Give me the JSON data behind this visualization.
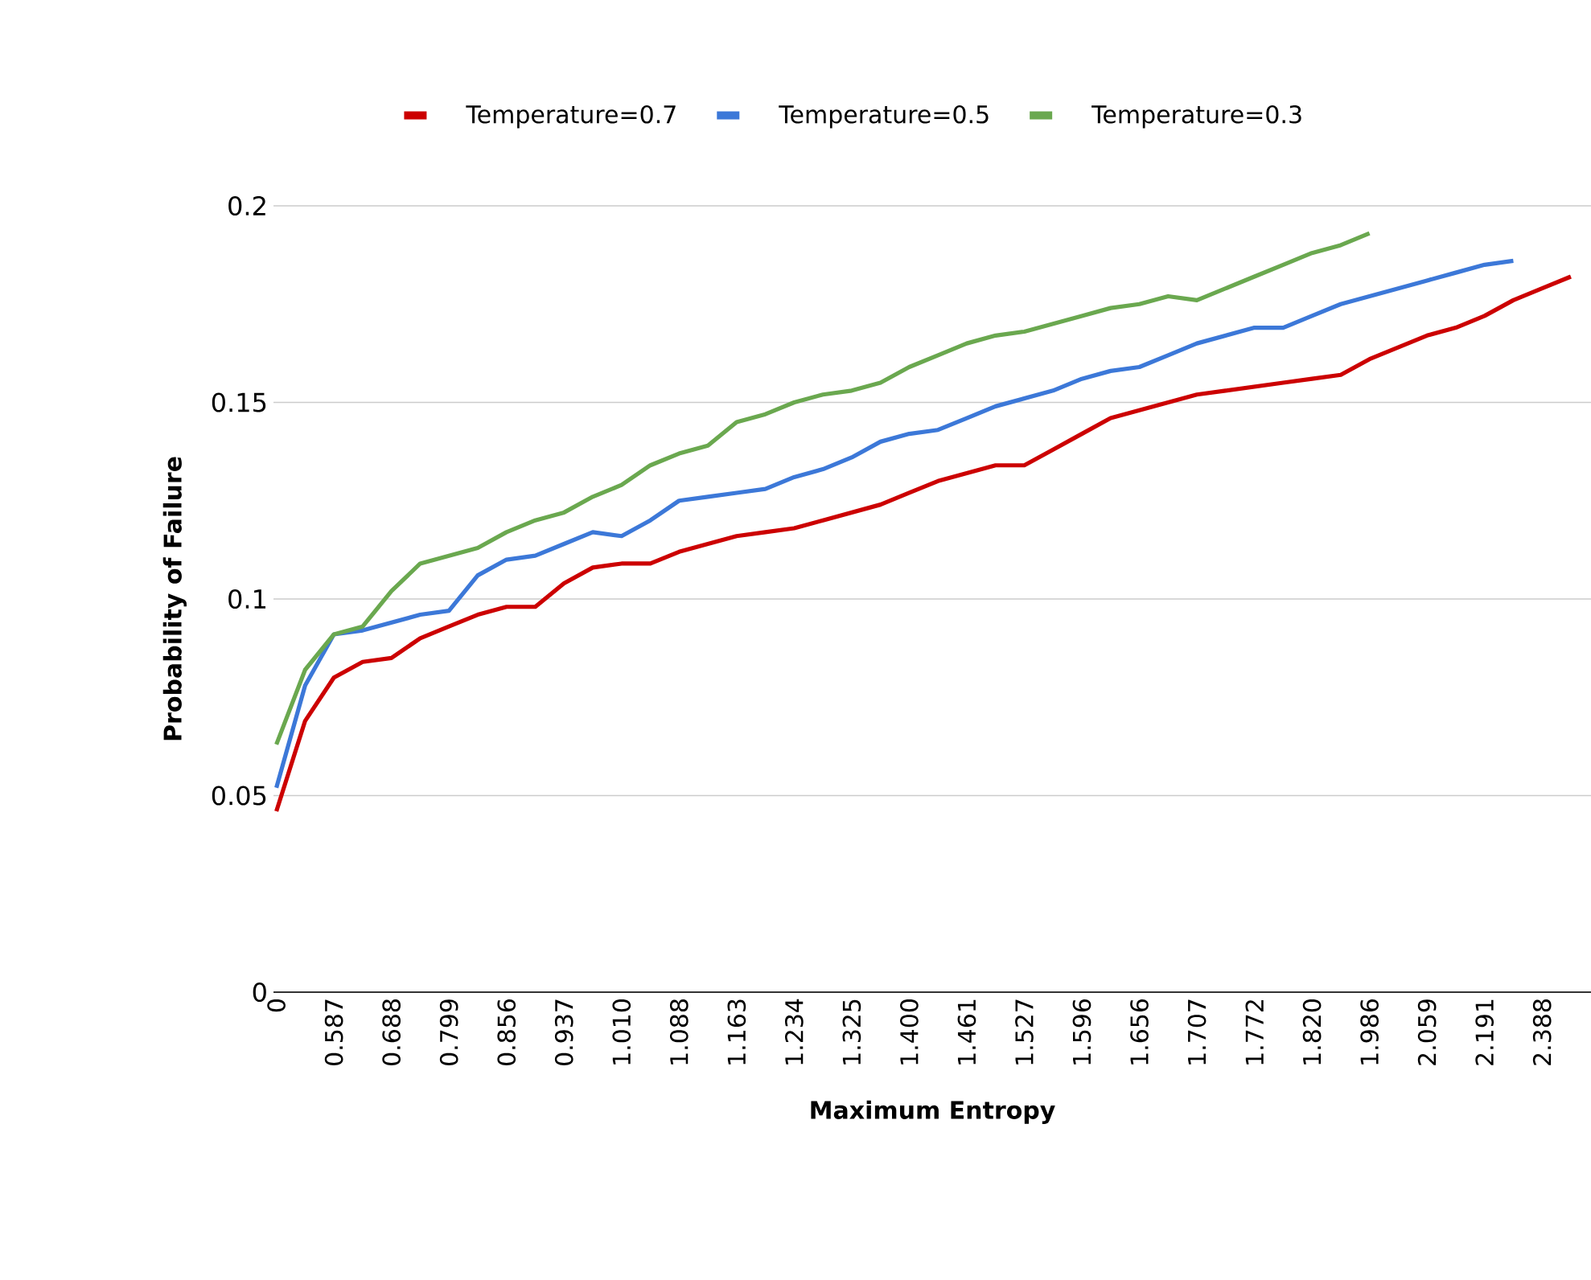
{
  "chart_data": {
    "type": "line",
    "xlabel": "Maximum Entropy",
    "ylabel": "Probability of Failure",
    "categories": [
      "0",
      null,
      "0.587",
      null,
      "0.688",
      null,
      "0.799",
      null,
      "0.856",
      null,
      "0.937",
      null,
      "1.010",
      null,
      "1.088",
      null,
      "1.163",
      null,
      "1.234",
      null,
      "1.325",
      null,
      "1.400",
      null,
      "1.461",
      null,
      "1.527",
      null,
      "1.596",
      null,
      "1.656",
      null,
      "1.707",
      null,
      "1.772",
      null,
      "1.820",
      null,
      "1.986",
      null,
      "2.059",
      null,
      "2.191",
      null,
      "2.388",
      null
    ],
    "series": [
      {
        "name": "Temperature=0.7",
        "color": "#cc0000",
        "values": [
          0.046,
          0.069,
          0.08,
          0.084,
          0.085,
          0.09,
          0.093,
          0.096,
          0.098,
          0.098,
          0.104,
          0.108,
          0.109,
          0.109,
          0.112,
          0.114,
          0.116,
          0.117,
          0.118,
          0.12,
          0.122,
          0.124,
          0.127,
          0.13,
          0.132,
          0.134,
          0.134,
          0.138,
          0.142,
          0.146,
          0.148,
          0.15,
          0.152,
          0.153,
          0.154,
          0.155,
          0.156,
          0.157,
          0.161,
          0.164,
          0.167,
          0.169,
          0.172,
          0.176,
          0.179,
          0.182
        ]
      },
      {
        "name": "Temperature=0.5",
        "color": "#3c78d8",
        "values": [
          0.052,
          0.078,
          0.091,
          0.092,
          0.094,
          0.096,
          0.097,
          0.106,
          0.11,
          0.111,
          0.114,
          0.117,
          0.116,
          0.12,
          0.125,
          0.126,
          0.127,
          0.128,
          0.131,
          0.133,
          0.136,
          0.14,
          0.142,
          0.143,
          0.146,
          0.149,
          0.151,
          0.153,
          0.156,
          0.158,
          0.159,
          0.162,
          0.165,
          0.167,
          0.169,
          0.169,
          0.172,
          0.175,
          0.177,
          0.179,
          0.181,
          0.183,
          0.185,
          0.186,
          null,
          null
        ]
      },
      {
        "name": "Temperature=0.3",
        "color": "#6aa84f",
        "values": [
          0.063,
          0.082,
          0.091,
          0.093,
          0.102,
          0.109,
          0.111,
          0.113,
          0.117,
          0.12,
          0.122,
          0.126,
          0.129,
          0.134,
          0.137,
          0.139,
          0.145,
          0.147,
          0.15,
          0.152,
          0.153,
          0.155,
          0.159,
          0.162,
          0.165,
          0.167,
          0.168,
          0.17,
          0.172,
          0.174,
          0.175,
          0.177,
          0.176,
          0.179,
          0.182,
          0.185,
          0.188,
          0.19,
          0.193,
          null,
          null,
          null,
          null,
          null,
          null,
          null
        ]
      }
    ],
    "ylim": [
      0,
      0.2
    ],
    "yticks": [
      0,
      0.05,
      0.1,
      0.15,
      0.2
    ],
    "grid": "y",
    "legend": "top"
  }
}
